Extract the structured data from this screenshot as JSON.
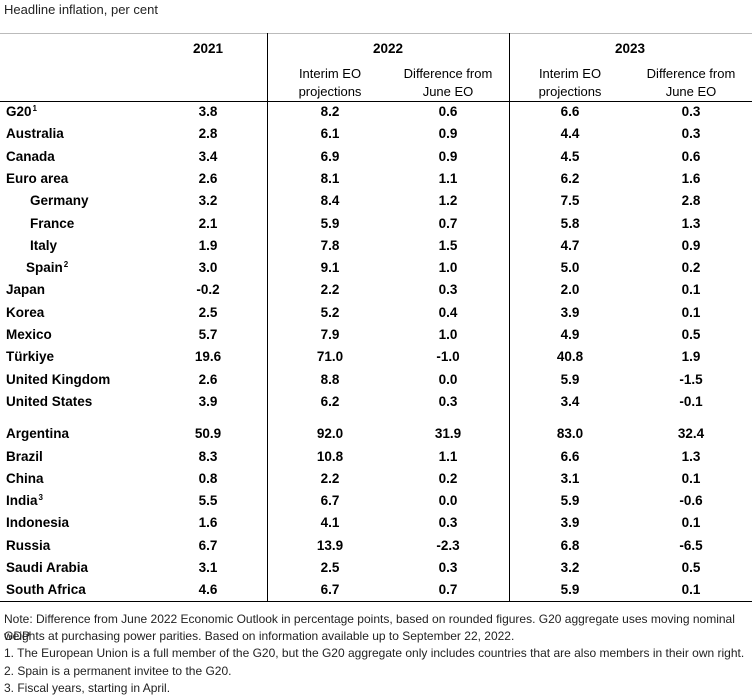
{
  "chart_data": {
    "type": "table",
    "subtitle": "Headline inflation, per cent",
    "headers": {
      "y2021": "2021",
      "y2022": "2022",
      "y2023": "2023",
      "interim_line1": "Interim EO",
      "interim_line2": "projections",
      "diff_line1": "Difference from",
      "diff_line2": "June EO"
    },
    "groups": [
      [
        {
          "name": "G20",
          "sup": "1",
          "indent": 0,
          "v2021": "3.8",
          "p2022": "8.2",
          "d2022": "0.6",
          "p2023": "6.6",
          "d2023": "0.3"
        },
        {
          "name": "Australia",
          "sup": "",
          "indent": 0,
          "v2021": "2.8",
          "p2022": "6.1",
          "d2022": "0.9",
          "p2023": "4.4",
          "d2023": "0.3"
        },
        {
          "name": "Canada",
          "sup": "",
          "indent": 0,
          "v2021": "3.4",
          "p2022": "6.9",
          "d2022": "0.9",
          "p2023": "4.5",
          "d2023": "0.6"
        },
        {
          "name": "Euro area",
          "sup": "",
          "indent": 0,
          "v2021": "2.6",
          "p2022": "8.1",
          "d2022": "1.1",
          "p2023": "6.2",
          "d2023": "1.6"
        },
        {
          "name": "Germany",
          "sup": "",
          "indent": 2,
          "v2021": "3.2",
          "p2022": "8.4",
          "d2022": "1.2",
          "p2023": "7.5",
          "d2023": "2.8"
        },
        {
          "name": "France",
          "sup": "",
          "indent": 2,
          "v2021": "2.1",
          "p2022": "5.9",
          "d2022": "0.7",
          "p2023": "5.8",
          "d2023": "1.3"
        },
        {
          "name": "Italy",
          "sup": "",
          "indent": 2,
          "v2021": "1.9",
          "p2022": "7.8",
          "d2022": "1.5",
          "p2023": "4.7",
          "d2023": "0.9"
        },
        {
          "name": "Spain",
          "sup": "2",
          "indent": 1,
          "v2021": "3.0",
          "p2022": "9.1",
          "d2022": "1.0",
          "p2023": "5.0",
          "d2023": "0.2"
        },
        {
          "name": "Japan",
          "sup": "",
          "indent": 0,
          "v2021": "-0.2",
          "p2022": "2.2",
          "d2022": "0.3",
          "p2023": "2.0",
          "d2023": "0.1"
        },
        {
          "name": "Korea",
          "sup": "",
          "indent": 0,
          "v2021": "2.5",
          "p2022": "5.2",
          "d2022": "0.4",
          "p2023": "3.9",
          "d2023": "0.1"
        },
        {
          "name": "Mexico",
          "sup": "",
          "indent": 0,
          "v2021": "5.7",
          "p2022": "7.9",
          "d2022": "1.0",
          "p2023": "4.9",
          "d2023": "0.5"
        },
        {
          "name": "Türkiye",
          "sup": "",
          "indent": 0,
          "v2021": "19.6",
          "p2022": "71.0",
          "d2022": "-1.0",
          "p2023": "40.8",
          "d2023": "1.9"
        },
        {
          "name": "United Kingdom",
          "sup": "",
          "indent": 0,
          "v2021": "2.6",
          "p2022": "8.8",
          "d2022": "0.0",
          "p2023": "5.9",
          "d2023": "-1.5"
        },
        {
          "name": "United States",
          "sup": "",
          "indent": 0,
          "v2021": "3.9",
          "p2022": "6.2",
          "d2022": "0.3",
          "p2023": "3.4",
          "d2023": "-0.1"
        }
      ],
      [
        {
          "name": "Argentina",
          "sup": "",
          "indent": 0,
          "v2021": "50.9",
          "p2022": "92.0",
          "d2022": "31.9",
          "p2023": "83.0",
          "d2023": "32.4"
        },
        {
          "name": "Brazil",
          "sup": "",
          "indent": 0,
          "v2021": "8.3",
          "p2022": "10.8",
          "d2022": "1.1",
          "p2023": "6.6",
          "d2023": "1.3"
        },
        {
          "name": "China",
          "sup": "",
          "indent": 0,
          "v2021": "0.8",
          "p2022": "2.2",
          "d2022": "0.2",
          "p2023": "3.1",
          "d2023": "0.1"
        },
        {
          "name": "India",
          "sup": "3",
          "indent": 0,
          "v2021": "5.5",
          "p2022": "6.7",
          "d2022": "0.0",
          "p2023": "5.9",
          "d2023": "-0.6"
        },
        {
          "name": "Indonesia",
          "sup": "",
          "indent": 0,
          "v2021": "1.6",
          "p2022": "4.1",
          "d2022": "0.3",
          "p2023": "3.9",
          "d2023": "0.1"
        },
        {
          "name": "Russia",
          "sup": "",
          "indent": 0,
          "v2021": "6.7",
          "p2022": "13.9",
          "d2022": "-2.3",
          "p2023": "6.8",
          "d2023": "-6.5"
        },
        {
          "name": "Saudi Arabia",
          "sup": "",
          "indent": 0,
          "v2021": "3.1",
          "p2022": "2.5",
          "d2022": "0.3",
          "p2023": "3.2",
          "d2023": "0.5"
        },
        {
          "name": "South Africa",
          "sup": "",
          "indent": 0,
          "v2021": "4.6",
          "p2022": "6.7",
          "d2022": "0.7",
          "p2023": "5.9",
          "d2023": "0.1"
        }
      ]
    ],
    "notes": [
      "Note: Difference from June 2022 Economic Outlook in percentage points, based on rounded figures. G20 aggregate uses moving nominal GDP",
      "weights at purchasing power parities. Based on information available up to September 22, 2022.",
      "1.   The European Union is a full member of the G20, but the G20 aggregate only includes countries that are also members in their own right.",
      "2.   Spain is a permanent invitee to the G20.",
      "3.   Fiscal years, starting in April."
    ]
  }
}
